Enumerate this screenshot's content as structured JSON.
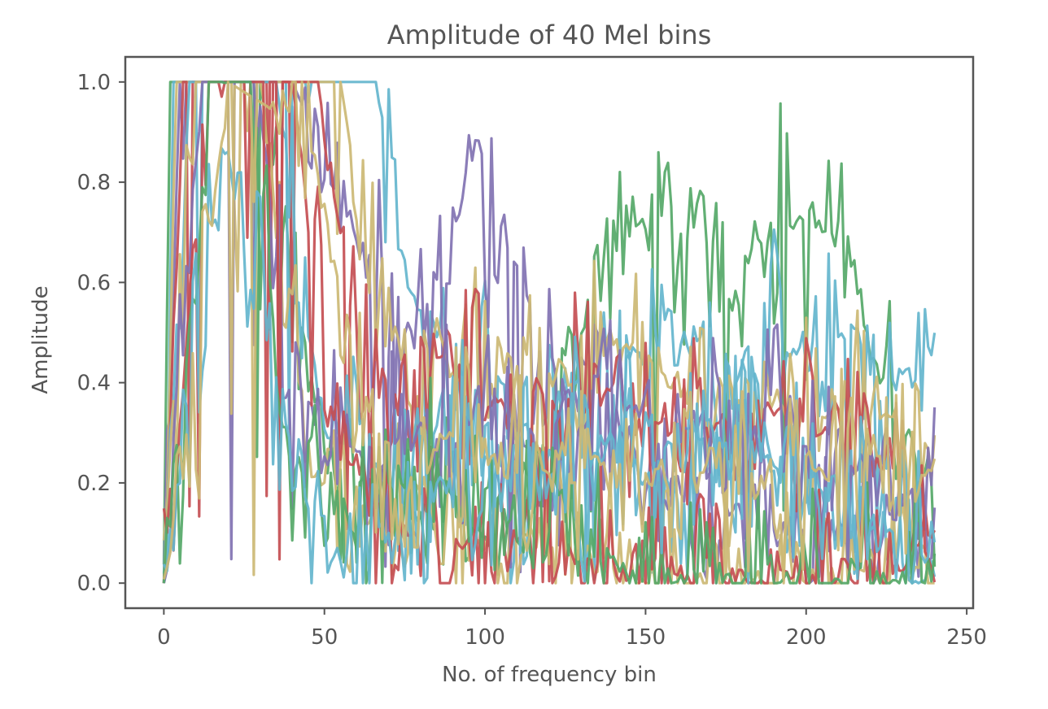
{
  "chart_data": {
    "type": "line",
    "title": "Amplitude of 40 Mel bins",
    "xlabel": "No. of frequency bin",
    "ylabel": "Amplitude",
    "xlim": [
      -12,
      252
    ],
    "ylim": [
      -0.05,
      1.05
    ],
    "x_ticks": [
      0,
      50,
      100,
      150,
      200,
      250
    ],
    "x_tick_labels": [
      "0",
      "50",
      "100",
      "150",
      "200",
      "250"
    ],
    "y_ticks": [
      0.0,
      0.2,
      0.4,
      0.6,
      0.8,
      1.0
    ],
    "y_tick_labels": [
      "0.0",
      "0.2",
      "0.4",
      "0.6",
      "0.8",
      "1.0"
    ],
    "grid": false,
    "legend": "none",
    "n_points": 241,
    "x_range": [
      0,
      240
    ],
    "palette": [
      "#4c72b0",
      "#55a868",
      "#c44e52",
      "#8172b2",
      "#ccb974",
      "#64b5cd"
    ],
    "series": [
      {
        "color": "#55a868",
        "values_anchors": [
          [
            0,
            0.0
          ],
          [
            2,
            1.0
          ],
          [
            30,
            1.0
          ],
          [
            45,
            0.4
          ],
          [
            60,
            0.2
          ],
          [
            80,
            0.15
          ],
          [
            100,
            0.1
          ],
          [
            120,
            0.25
          ],
          [
            130,
            0.5
          ],
          [
            135,
            0.65
          ],
          [
            140,
            0.7
          ],
          [
            150,
            0.72
          ],
          [
            160,
            0.68
          ],
          [
            165,
            0.77
          ],
          [
            172,
            0.7
          ],
          [
            180,
            0.62
          ],
          [
            185,
            0.72
          ],
          [
            192,
            0.77
          ],
          [
            200,
            0.72
          ],
          [
            210,
            0.7
          ],
          [
            215,
            0.62
          ],
          [
            220,
            0.5
          ],
          [
            225,
            0.4
          ],
          [
            230,
            0.3
          ],
          [
            240,
            0.22
          ]
        ]
      },
      {
        "color": "#64b5cd",
        "values_anchors": [
          [
            0,
            0.0
          ],
          [
            3,
            1.0
          ],
          [
            60,
            1.0
          ],
          [
            66,
            1.0
          ],
          [
            72,
            0.75
          ],
          [
            80,
            0.5
          ],
          [
            90,
            0.35
          ],
          [
            100,
            0.5
          ],
          [
            110,
            0.3
          ],
          [
            125,
            0.38
          ],
          [
            140,
            0.45
          ],
          [
            160,
            0.5
          ],
          [
            175,
            0.4
          ],
          [
            190,
            0.52
          ],
          [
            200,
            0.45
          ],
          [
            215,
            0.5
          ],
          [
            225,
            0.4
          ],
          [
            240,
            0.45
          ]
        ]
      },
      {
        "color": "#8172b2",
        "values_anchors": [
          [
            0,
            0.0
          ],
          [
            5,
            1.0
          ],
          [
            40,
            1.0
          ],
          [
            60,
            0.7
          ],
          [
            75,
            0.5
          ],
          [
            85,
            0.6
          ],
          [
            90,
            0.7
          ],
          [
            96,
            0.86
          ],
          [
            100,
            0.72
          ],
          [
            105,
            0.7
          ],
          [
            110,
            0.65
          ],
          [
            115,
            0.62
          ],
          [
            120,
            0.45
          ],
          [
            130,
            0.35
          ],
          [
            150,
            0.25
          ],
          [
            170,
            0.15
          ],
          [
            190,
            0.12
          ],
          [
            210,
            0.1
          ],
          [
            230,
            0.15
          ],
          [
            240,
            0.1
          ]
        ]
      },
      {
        "color": "#ccb974",
        "values_anchors": [
          [
            0,
            0.0
          ],
          [
            4,
            1.0
          ],
          [
            55,
            1.0
          ],
          [
            65,
            0.6
          ],
          [
            80,
            0.4
          ],
          [
            100,
            0.45
          ],
          [
            120,
            0.42
          ],
          [
            135,
            0.48
          ],
          [
            150,
            0.45
          ],
          [
            165,
            0.35
          ],
          [
            180,
            0.4
          ],
          [
            200,
            0.35
          ],
          [
            215,
            0.38
          ],
          [
            230,
            0.3
          ],
          [
            240,
            0.25
          ]
        ]
      },
      {
        "color": "#c44e52",
        "values_anchors": [
          [
            0,
            0.0
          ],
          [
            6,
            1.0
          ],
          [
            48,
            1.0
          ],
          [
            60,
            0.45
          ],
          [
            75,
            0.35
          ],
          [
            90,
            0.5
          ],
          [
            110,
            0.3
          ],
          [
            130,
            0.4
          ],
          [
            150,
            0.35
          ],
          [
            170,
            0.3
          ],
          [
            190,
            0.35
          ],
          [
            210,
            0.3
          ],
          [
            230,
            0.2
          ],
          [
            240,
            0.1
          ]
        ]
      },
      {
        "color": "#64b5cd",
        "values_anchors": [
          [
            0,
            0.0
          ],
          [
            8,
            1.0
          ],
          [
            35,
            1.0
          ],
          [
            50,
            0.3
          ],
          [
            70,
            0.2
          ],
          [
            90,
            0.35
          ],
          [
            110,
            0.15
          ],
          [
            130,
            0.3
          ],
          [
            150,
            0.2
          ],
          [
            170,
            0.3
          ],
          [
            190,
            0.25
          ],
          [
            210,
            0.2
          ],
          [
            230,
            0.05
          ],
          [
            240,
            0.0
          ]
        ]
      },
      {
        "color": "#ccb974",
        "values_anchors": [
          [
            0,
            0.0
          ],
          [
            10,
            1.0
          ],
          [
            30,
            1.0
          ],
          [
            45,
            0.25
          ],
          [
            60,
            0.1
          ],
          [
            80,
            0.2
          ],
          [
            100,
            0.05
          ],
          [
            120,
            0.1
          ],
          [
            150,
            0.0
          ],
          [
            200,
            0.0
          ],
          [
            240,
            0.05
          ]
        ]
      },
      {
        "color": "#8172b2",
        "values_anchors": [
          [
            0,
            0.0
          ],
          [
            12,
            1.0
          ],
          [
            28,
            1.0
          ],
          [
            40,
            0.4
          ],
          [
            60,
            0.25
          ],
          [
            80,
            0.3
          ],
          [
            100,
            0.35
          ],
          [
            120,
            0.25
          ],
          [
            140,
            0.4
          ],
          [
            160,
            0.3
          ],
          [
            180,
            0.35
          ],
          [
            200,
            0.3
          ],
          [
            220,
            0.2
          ],
          [
            240,
            0.15
          ]
        ]
      },
      {
        "color": "#c44e52",
        "values_anchors": [
          [
            0,
            0.0
          ],
          [
            14,
            1.0
          ],
          [
            40,
            1.0
          ],
          [
            55,
            0.3
          ],
          [
            70,
            0.1
          ],
          [
            90,
            0.05
          ],
          [
            110,
            0.1
          ],
          [
            130,
            0.05
          ],
          [
            150,
            0.02
          ],
          [
            200,
            0.02
          ],
          [
            240,
            0.05
          ]
        ]
      },
      {
        "color": "#55a868",
        "values_anchors": [
          [
            0,
            0.0
          ],
          [
            16,
            1.0
          ],
          [
            25,
            1.0
          ],
          [
            40,
            0.2
          ],
          [
            60,
            0.15
          ],
          [
            80,
            0.25
          ],
          [
            100,
            0.1
          ],
          [
            120,
            0.2
          ],
          [
            140,
            0.05
          ],
          [
            160,
            0.0
          ],
          [
            240,
            0.0
          ]
        ]
      },
      {
        "color": "#64b5cd",
        "values_anchors": [
          [
            0,
            0.0
          ],
          [
            18,
            0.9
          ],
          [
            30,
            0.6
          ],
          [
            45,
            0.1
          ],
          [
            60,
            0.05
          ],
          [
            80,
            0.15
          ],
          [
            100,
            0.25
          ],
          [
            120,
            0.2
          ],
          [
            140,
            0.3
          ],
          [
            160,
            0.25
          ],
          [
            180,
            0.3
          ],
          [
            200,
            0.2
          ],
          [
            220,
            0.15
          ],
          [
            240,
            0.1
          ]
        ]
      },
      {
        "color": "#ccb974",
        "values_anchors": [
          [
            0,
            0.0
          ],
          [
            20,
            1.0
          ],
          [
            45,
            0.9
          ],
          [
            60,
            0.4
          ],
          [
            75,
            0.2
          ],
          [
            90,
            0.3
          ],
          [
            110,
            0.2
          ],
          [
            130,
            0.25
          ],
          [
            150,
            0.2
          ],
          [
            170,
            0.25
          ],
          [
            190,
            0.2
          ],
          [
            210,
            0.25
          ],
          [
            230,
            0.3
          ],
          [
            240,
            0.2
          ]
        ]
      }
    ]
  }
}
